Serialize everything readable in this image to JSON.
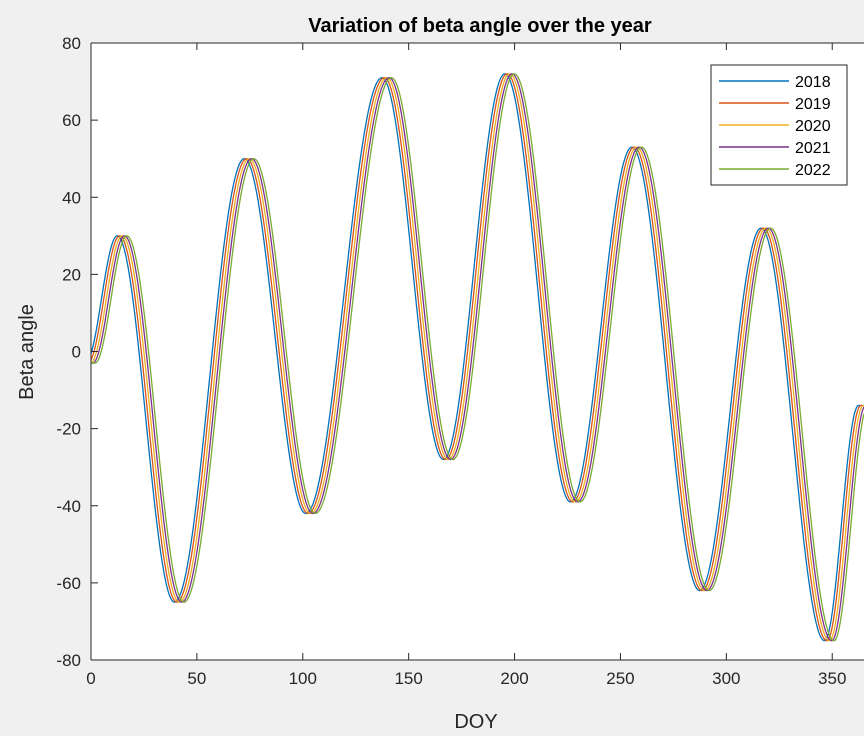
{
  "chart_data": {
    "type": "line",
    "title": "Variation of beta angle over the year",
    "xlabel": "DOY",
    "ylabel": "Beta angle",
    "xlim": [
      0,
      365
    ],
    "ylim": [
      -80,
      80
    ],
    "xticks": [
      0,
      50,
      100,
      150,
      200,
      250,
      300,
      350
    ],
    "yticks": [
      -80,
      -60,
      -40,
      -20,
      0,
      20,
      40,
      60,
      80
    ],
    "grid": false,
    "legend_position": "top-right",
    "colors": {
      "2018": "#0072BD",
      "2019": "#D95319",
      "2020": "#EDB120",
      "2021": "#7E2F8E",
      "2022": "#77AC30"
    },
    "extrema_doy": [
      0,
      15,
      42,
      75,
      104,
      140,
      169,
      198,
      229,
      258,
      290,
      319,
      349,
      365
    ],
    "extrema_beta": [
      -3,
      30,
      -65,
      50,
      -42,
      71,
      -28,
      72,
      -39,
      53,
      -62,
      32,
      -75,
      -14
    ],
    "series": [
      {
        "name": "2018",
        "doy_offset": 2.6
      },
      {
        "name": "2019",
        "doy_offset": 1.5
      },
      {
        "name": "2020",
        "doy_offset": 0.3
      },
      {
        "name": "2021",
        "doy_offset": -0.8
      },
      {
        "name": "2022",
        "doy_offset": -1.9
      }
    ]
  }
}
